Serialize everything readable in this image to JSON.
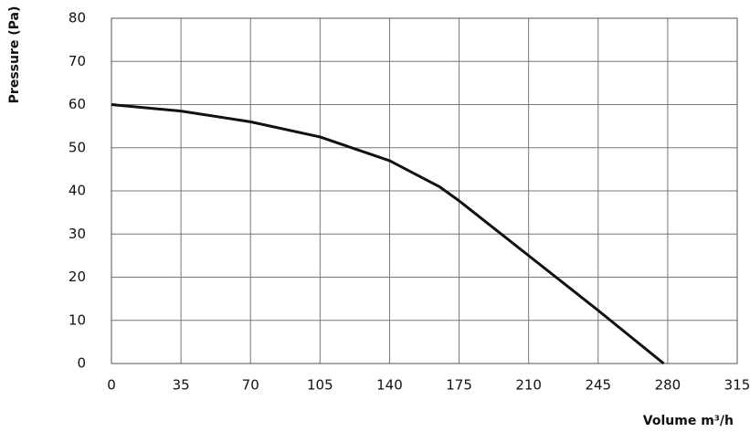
{
  "chart_data": {
    "type": "line",
    "x_label": "Volume m³/h",
    "y_label": "Pressure (Pa)",
    "xlim": [
      0,
      315
    ],
    "xticks": [
      0,
      35,
      70,
      105,
      140,
      175,
      210,
      245,
      280,
      315
    ],
    "ylim": [
      0,
      80
    ],
    "yticks": [
      0,
      10,
      20,
      30,
      40,
      50,
      60,
      70,
      80
    ],
    "grid": true,
    "series": [
      {
        "color": "#111111",
        "x": [
          0,
          35,
          70,
          105,
          140,
          165,
          175,
          210,
          245,
          278
        ],
        "values": [
          60,
          58.5,
          56,
          52.5,
          47,
          41,
          37.7,
          25,
          12.3,
          0
        ]
      }
    ]
  }
}
